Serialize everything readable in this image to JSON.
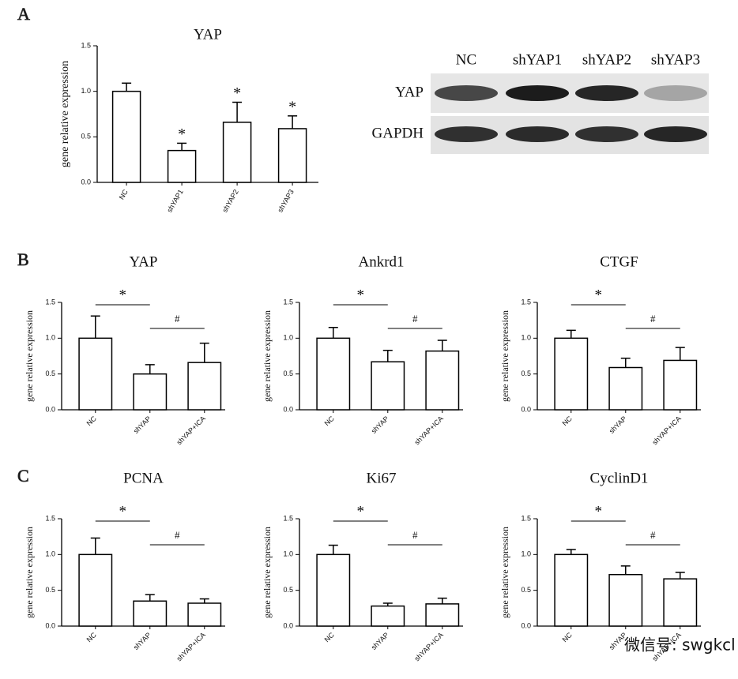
{
  "panel_labels": [
    "A",
    "B",
    "C"
  ],
  "western_blot": {
    "lanes": [
      "NC",
      "shYAP1",
      "shYAP2",
      "shYAP3"
    ],
    "rows": [
      "YAP",
      "GAPDH"
    ]
  },
  "watermark": "微信号: swgkcl",
  "chart_data": [
    {
      "type": "bar",
      "title": "YAP",
      "y_label": "gene relative expression",
      "categories": [
        "NC",
        "shYAP1",
        "shYAP2",
        "shYAP3"
      ],
      "values": [
        1.0,
        0.35,
        0.66,
        0.59
      ],
      "errors": [
        0.09,
        0.08,
        0.22,
        0.14
      ],
      "value_annotations": [
        null,
        "*",
        "*",
        "*"
      ],
      "color": "#ffffff",
      "ylim": [
        0,
        1.5
      ],
      "yticks": [
        {
          "value": 0,
          "label": "0.0"
        },
        0.5,
        {
          "value": 1,
          "label": "1.0"
        },
        1.5
      ]
    },
    {
      "type": "bar",
      "title": "YAP",
      "y_label": "gene relative expression",
      "categories": [
        "NC",
        "shYAP",
        "shYAP+ICA"
      ],
      "values": [
        1.0,
        0.5,
        0.66
      ],
      "errors": [
        0.31,
        0.13,
        0.27
      ],
      "brackets": [
        {
          "label": "*",
          "between": [
            0,
            1
          ]
        },
        {
          "label": "#",
          "between": [
            1,
            2
          ]
        }
      ],
      "color": "#ffffff",
      "ylim": [
        0,
        1.5
      ],
      "yticks": [
        {
          "value": 0,
          "label": "0.0"
        },
        0.5,
        {
          "value": 1,
          "label": "1.0"
        },
        1.5
      ]
    },
    {
      "type": "bar",
      "title": "Ankrd1",
      "y_label": "gene relative expression",
      "categories": [
        "NC",
        "shYAP",
        "shYAP+ICA"
      ],
      "values": [
        1.0,
        0.67,
        0.82
      ],
      "errors": [
        0.15,
        0.16,
        0.15
      ],
      "brackets": [
        {
          "label": "*",
          "between": [
            0,
            1
          ]
        },
        {
          "label": "#",
          "between": [
            1,
            2
          ]
        }
      ],
      "color": "#ffffff",
      "ylim": [
        0,
        1.5
      ],
      "yticks": [
        {
          "value": 0,
          "label": "0.0"
        },
        0.5,
        {
          "value": 1,
          "label": "1.0"
        },
        1.5
      ]
    },
    {
      "type": "bar",
      "title": "CTGF",
      "y_label": "gene relative expression",
      "categories": [
        "NC",
        "shYAP",
        "shYAP+ICA"
      ],
      "values": [
        1.0,
        0.59,
        0.69
      ],
      "errors": [
        0.11,
        0.13,
        0.18
      ],
      "brackets": [
        {
          "label": "*",
          "between": [
            0,
            1
          ]
        },
        {
          "label": "#",
          "between": [
            1,
            2
          ]
        }
      ],
      "color": "#ffffff",
      "ylim": [
        0,
        1.5
      ],
      "yticks": [
        {
          "value": 0,
          "label": "0.0"
        },
        0.5,
        {
          "value": 1,
          "label": "1.0"
        },
        1.5
      ]
    },
    {
      "type": "bar",
      "title": "PCNA",
      "y_label": "gene relative expression",
      "categories": [
        "NC",
        "shYAP",
        "shYAP+ICA"
      ],
      "values": [
        1.0,
        0.35,
        0.32
      ],
      "errors": [
        0.23,
        0.09,
        0.06
      ],
      "brackets": [
        {
          "label": "*",
          "between": [
            0,
            1
          ]
        },
        {
          "label": "#",
          "between": [
            1,
            2
          ]
        }
      ],
      "color": "#ffffff",
      "ylim": [
        0,
        1.5
      ],
      "yticks": [
        {
          "value": 0,
          "label": "0.0"
        },
        0.5,
        {
          "value": 1,
          "label": "1.0"
        },
        1.5
      ]
    },
    {
      "type": "bar",
      "title": "Ki67",
      "y_label": "gene relative expression",
      "categories": [
        "NC",
        "shYAP",
        "shYAP+ICA"
      ],
      "values": [
        1.0,
        0.28,
        0.31
      ],
      "errors": [
        0.13,
        0.04,
        0.08
      ],
      "brackets": [
        {
          "label": "*",
          "between": [
            0,
            1
          ]
        },
        {
          "label": "#",
          "between": [
            1,
            2
          ]
        }
      ],
      "color": "#ffffff",
      "ylim": [
        0,
        1.5
      ],
      "yticks": [
        {
          "value": 0,
          "label": "0.0"
        },
        0.5,
        {
          "value": 1,
          "label": "1.0"
        },
        1.5
      ]
    },
    {
      "type": "bar",
      "title": "CyclinD1",
      "y_label": "gene relative expression",
      "categories": [
        "NC",
        "shYAP",
        "shYAP+ICA"
      ],
      "values": [
        1.0,
        0.72,
        0.66
      ],
      "errors": [
        0.07,
        0.12,
        0.09
      ],
      "brackets": [
        {
          "label": "*",
          "between": [
            0,
            1
          ]
        },
        {
          "label": "#",
          "between": [
            1,
            2
          ]
        }
      ],
      "color": "#ffffff",
      "ylim": [
        0,
        1.5
      ],
      "yticks": [
        {
          "value": 0,
          "label": "0.0"
        },
        0.5,
        {
          "value": 1,
          "label": "1.0"
        },
        1.5
      ]
    }
  ]
}
